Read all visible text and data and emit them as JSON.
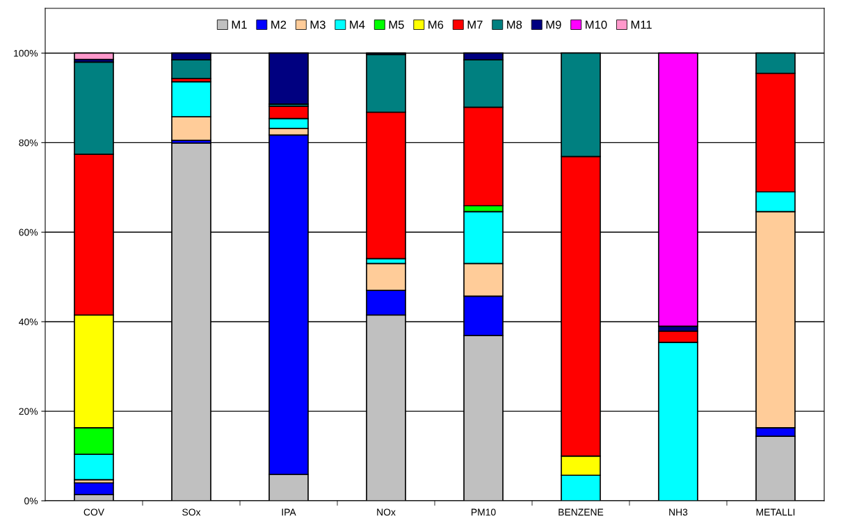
{
  "chart_data": {
    "type": "bar",
    "stacked": true,
    "categories": [
      "COV",
      "SOx",
      "IPA",
      "NOx",
      "PM10",
      "BENZENE",
      "NH3",
      "METALLI"
    ],
    "series": [
      {
        "name": "M1",
        "color": "#c0c0c0",
        "values": [
          1.4,
          79.9,
          5.9,
          41.5,
          36.9,
          null,
          null,
          14.4
        ]
      },
      {
        "name": "M2",
        "color": "#0000ff",
        "values": [
          2.6,
          0.6,
          75.8,
          5.5,
          8.8,
          null,
          null,
          1.9
        ]
      },
      {
        "name": "M3",
        "color": "#ffcc99",
        "values": [
          0.7,
          5.3,
          1.5,
          6.0,
          7.3,
          null,
          null,
          48.3
        ]
      },
      {
        "name": "M4",
        "color": "#00ffff",
        "values": [
          5.7,
          7.8,
          2.2,
          1.1,
          11.6,
          5.7,
          35.4,
          4.4
        ]
      },
      {
        "name": "M5",
        "color": "#00ff00",
        "values": [
          5.9,
          null,
          null,
          null,
          1.3,
          null,
          null,
          null
        ]
      },
      {
        "name": "M6",
        "color": "#ffff00",
        "values": [
          25.2,
          null,
          null,
          null,
          null,
          4.3,
          null,
          null
        ]
      },
      {
        "name": "M7",
        "color": "#ff0000",
        "values": [
          35.9,
          0.7,
          2.7,
          32.7,
          22.0,
          66.9,
          2.5,
          26.5
        ]
      },
      {
        "name": "M8",
        "color": "#008080",
        "values": [
          20.6,
          4.2,
          0.5,
          12.9,
          10.6,
          23.1,
          null,
          4.5
        ]
      },
      {
        "name": "M9",
        "color": "#000080",
        "values": [
          0.6,
          1.5,
          11.4,
          0.3,
          1.5,
          null,
          1.1,
          null
        ]
      },
      {
        "name": "M10",
        "color": "#ff00ff",
        "values": [
          null,
          null,
          null,
          null,
          null,
          null,
          61.0,
          null
        ]
      },
      {
        "name": "M11",
        "color": "#ff99cc",
        "values": [
          1.4,
          null,
          null,
          null,
          null,
          null,
          null,
          null
        ]
      }
    ],
    "ylim": [
      0,
      110
    ],
    "yticks": [
      {
        "value": 0,
        "label": "0%"
      },
      {
        "value": 20,
        "label": "20%"
      },
      {
        "value": 40,
        "label": "40%"
      },
      {
        "value": 60,
        "label": "60%"
      },
      {
        "value": 80,
        "label": "80%"
      },
      {
        "value": 100,
        "label": "100%"
      }
    ],
    "grid": "y",
    "legend": "top"
  }
}
